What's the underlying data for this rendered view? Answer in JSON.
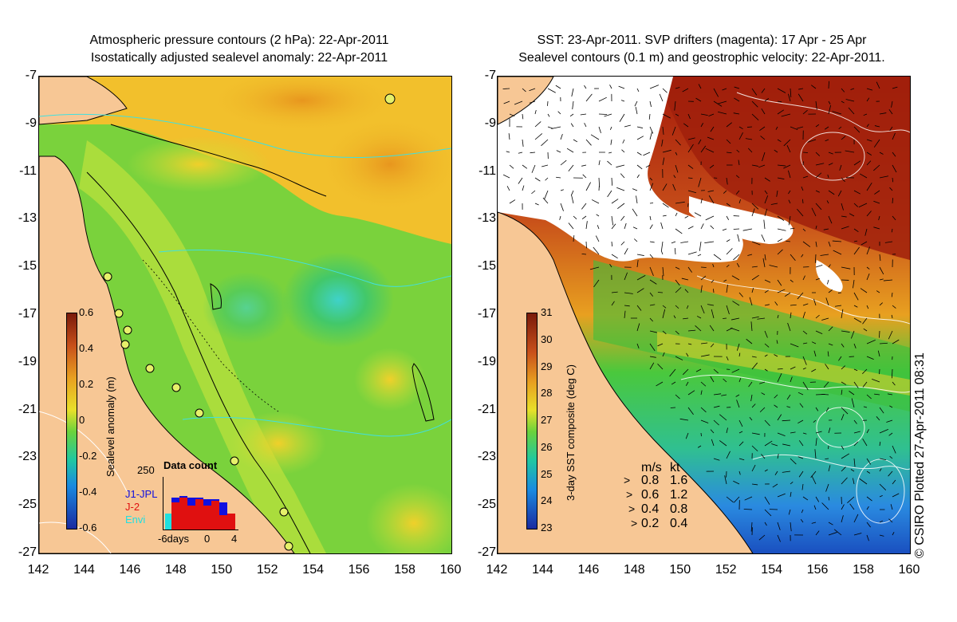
{
  "left": {
    "title_line1": "Atmospheric pressure contours (2 hPa): 22-Apr-2011",
    "title_line2": "Isostatically adjusted sealevel anomaly: 22-Apr-2011",
    "colorbar": {
      "label": "Sealevel anomaly (m)",
      "ticks": [
        "0.6",
        "0.4",
        "0.2",
        "0",
        "-0.2",
        "-0.4",
        "-0.6"
      ]
    },
    "data_count": {
      "title": "Data count",
      "max_tick": "250",
      "legend": [
        "J1-JPL",
        "J-2",
        "Envi"
      ],
      "legend_colors": [
        "#1010e0",
        "#e01010",
        "#20e0e0"
      ],
      "x_ticks": [
        "-6days",
        "0",
        "4"
      ]
    }
  },
  "right": {
    "title_line1": "SST: 23-Apr-2011. SVP drifters (magenta): 17 Apr - 25 Apr",
    "title_line2": "Sealevel contours (0.1 m) and geostrophic velocity: 22-Apr-2011.",
    "colorbar": {
      "label": "3-day SST composite (deg C)",
      "ticks": [
        "31",
        "30",
        "29",
        "28",
        "27",
        "26",
        "25",
        "24",
        "23"
      ]
    },
    "velocity_legend": {
      "header_ms": "m/s",
      "header_kt": "kt",
      "rows": [
        {
          "ms": "0.8",
          "kt": "1.6"
        },
        {
          "ms": "0.6",
          "kt": "1.2"
        },
        {
          "ms": "0.4",
          "kt": "0.8"
        },
        {
          "ms": "0.2",
          "kt": "0.4"
        }
      ]
    }
  },
  "axes": {
    "y_ticks": [
      "-7",
      "-9",
      "-11",
      "-13",
      "-15",
      "-17",
      "-19",
      "-21",
      "-23",
      "-25",
      "-27"
    ],
    "x_ticks": [
      "142",
      "144",
      "146",
      "148",
      "150",
      "152",
      "154",
      "156",
      "158",
      "160"
    ]
  },
  "credit": "© CSIRO Plotted 27-Apr-2011 08:31",
  "colors": {
    "land": "#f7c795",
    "ocean_mid": "#7fd13b",
    "coast": "#000000",
    "contour_cyan": "#40e0e0"
  }
}
